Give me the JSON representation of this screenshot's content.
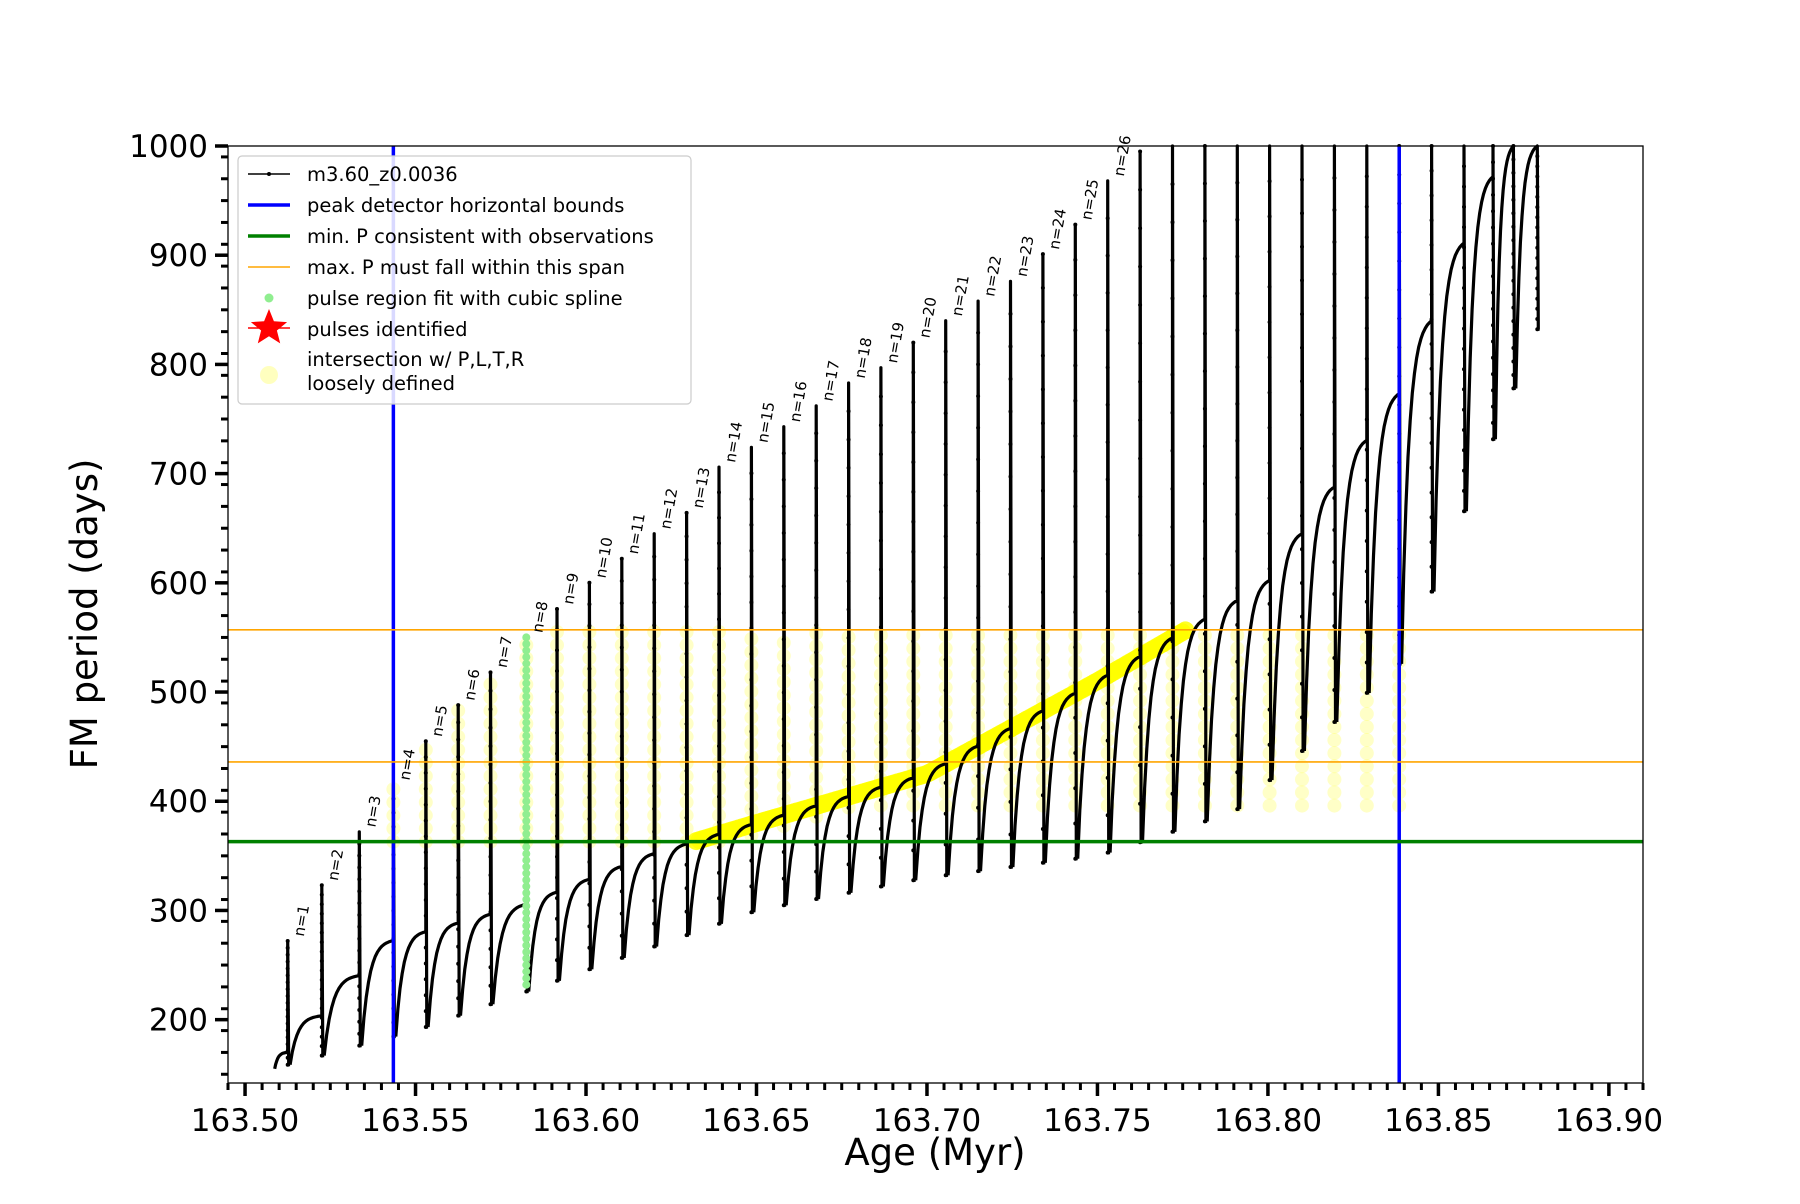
{
  "chart_data": {
    "type": "line",
    "xlabel": "Age (Myr)",
    "ylabel": "FM period (days)",
    "xlim": [
      163.495,
      163.91
    ],
    "ylim": [
      142,
      1000
    ],
    "x_ticks": [
      "163.50",
      "163.55",
      "163.60",
      "163.65",
      "163.70",
      "163.75",
      "163.80",
      "163.85",
      "163.90"
    ],
    "x_tick_values": [
      163.5,
      163.55,
      163.6,
      163.65,
      163.7,
      163.75,
      163.8,
      163.85,
      163.9
    ],
    "y_ticks": [
      "200",
      "300",
      "400",
      "500",
      "600",
      "700",
      "800",
      "900",
      "1000"
    ],
    "y_tick_values": [
      200,
      300,
      400,
      500,
      600,
      700,
      800,
      900,
      1000
    ],
    "grid": false,
    "legend_position": "top-left",
    "legend": [
      {
        "key": "track",
        "label": "m3.60_z0.0036"
      },
      {
        "key": "vbound",
        "label": "peak detector horizontal bounds"
      },
      {
        "key": "minp",
        "label": "min. P consistent with observations"
      },
      {
        "key": "maxp",
        "label": "max. P must fall within this span"
      },
      {
        "key": "spline",
        "label": "pulse region fit with cubic spline"
      },
      {
        "key": "star",
        "label": "pulses identified"
      },
      {
        "key": "intersect",
        "label": "intersection w/ P,L,T,R\nloosely defined"
      }
    ],
    "colors": {
      "track": "#000000",
      "vbound": "#0000ff",
      "minp": "#008000",
      "maxp": "#ffa500",
      "spline": "#90ee90",
      "star": "#ff0000",
      "intersect": "#ffff00"
    },
    "reference_lines": {
      "vertical_bounds": [
        163.5435,
        163.8385
      ],
      "min_period": 363,
      "max_period_span": [
        436,
        557
      ]
    },
    "spline_pulse": {
      "age": 163.5825,
      "p_min": 232,
      "p_max": 550
    },
    "pulses": [
      {
        "label": "n=1",
        "age": 163.5125,
        "peak": 272
      },
      {
        "label": "n=2",
        "age": 163.5225,
        "peak": 323
      },
      {
        "label": "n=3",
        "age": 163.5335,
        "peak": 372
      },
      {
        "label": "n=4",
        "age": 163.5435,
        "peak": 415
      },
      {
        "label": "n=5",
        "age": 163.553,
        "peak": 455
      },
      {
        "label": "n=6",
        "age": 163.5625,
        "peak": 488
      },
      {
        "label": "n=7",
        "age": 163.572,
        "peak": 518
      },
      {
        "label": "n=8",
        "age": 163.5825,
        "peak": 550
      },
      {
        "label": "n=9",
        "age": 163.5915,
        "peak": 576
      },
      {
        "label": "n=10",
        "age": 163.601,
        "peak": 600
      },
      {
        "label": "n=11",
        "age": 163.6105,
        "peak": 622
      },
      {
        "label": "n=12",
        "age": 163.62,
        "peak": 645
      },
      {
        "label": "n=13",
        "age": 163.6295,
        "peak": 664
      },
      {
        "label": "n=14",
        "age": 163.639,
        "peak": 706
      },
      {
        "label": "n=15",
        "age": 163.6485,
        "peak": 724
      },
      {
        "label": "n=16",
        "age": 163.658,
        "peak": 743
      },
      {
        "label": "n=17",
        "age": 163.6675,
        "peak": 762
      },
      {
        "label": "n=18",
        "age": 163.677,
        "peak": 783
      },
      {
        "label": "n=19",
        "age": 163.6865,
        "peak": 797
      },
      {
        "label": "n=20",
        "age": 163.696,
        "peak": 820
      },
      {
        "label": "n=21",
        "age": 163.7055,
        "peak": 840
      },
      {
        "label": "n=22",
        "age": 163.715,
        "peak": 858
      },
      {
        "label": "n=23",
        "age": 163.7245,
        "peak": 876
      },
      {
        "label": "n=24",
        "age": 163.734,
        "peak": 901
      },
      {
        "label": "n=25",
        "age": 163.7435,
        "peak": 928
      },
      {
        "label": "n=26",
        "age": 163.753,
        "peak": 968
      }
    ],
    "unlabeled_pulses": [
      {
        "age": 163.7625,
        "peak": 995
      },
      {
        "age": 163.772,
        "peak": 1000
      },
      {
        "age": 163.7815,
        "peak": 1000
      },
      {
        "age": 163.791,
        "peak": 1000
      },
      {
        "age": 163.8005,
        "peak": 1000
      },
      {
        "age": 163.81,
        "peak": 1000
      },
      {
        "age": 163.8195,
        "peak": 1000
      },
      {
        "age": 163.829,
        "peak": 1000
      },
      {
        "age": 163.8385,
        "peak": 1000
      },
      {
        "age": 163.848,
        "peak": 1000
      },
      {
        "age": 163.8575,
        "peak": 1000
      },
      {
        "age": 163.866,
        "peak": 1000
      },
      {
        "age": 163.872,
        "peak": 1000
      },
      {
        "age": 163.879,
        "peak": 1000
      }
    ],
    "quiescent_track": [
      {
        "age": 163.508,
        "p": 155
      },
      {
        "age": 163.543,
        "p": 272
      },
      {
        "age": 163.582,
        "p": 305
      },
      {
        "age": 163.62,
        "p": 352
      },
      {
        "age": 163.65,
        "p": 380
      },
      {
        "age": 163.7,
        "p": 425
      },
      {
        "age": 163.75,
        "p": 510
      },
      {
        "age": 163.8,
        "p": 600
      },
      {
        "age": 163.84,
        "p": 780
      },
      {
        "age": 163.86,
        "p": 930
      },
      {
        "age": 163.87,
        "p": 1000
      }
    ],
    "pulse_dip": [
      {
        "age": 163.508,
        "dip": 155
      },
      {
        "age": 163.55,
        "dip": 190
      },
      {
        "age": 163.6,
        "dip": 245
      },
      {
        "age": 163.65,
        "dip": 300
      },
      {
        "age": 163.7,
        "dip": 330
      },
      {
        "age": 163.75,
        "dip": 350
      },
      {
        "age": 163.79,
        "dip": 390
      },
      {
        "age": 163.84,
        "dip": 530
      },
      {
        "age": 163.88,
        "dip": 840
      }
    ]
  }
}
